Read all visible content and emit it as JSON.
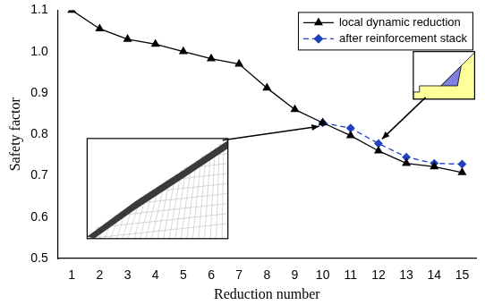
{
  "chart_data": {
    "type": "line",
    "x_label": "Reduction number",
    "y_label": "Safety factor",
    "categories": [
      "1",
      "2",
      "3",
      "4",
      "5",
      "6",
      "7",
      "8",
      "9",
      "10",
      "11",
      "12",
      "13",
      "14",
      "15"
    ],
    "series": [
      {
        "name": "local dynamic reduction",
        "color": "#000000",
        "marker": "triangle",
        "line_style": "solid",
        "values": [
          1.1,
          1.055,
          1.03,
          1.018,
          1.0,
          0.983,
          0.97,
          0.912,
          0.86,
          0.828,
          0.797,
          0.76,
          0.73,
          0.722,
          0.708
        ]
      },
      {
        "name": "after reinforcement stack",
        "color": "#1f3fbf",
        "marker": "diamond",
        "line_style": "dashed",
        "values": [
          null,
          null,
          null,
          null,
          null,
          null,
          null,
          null,
          null,
          0.828,
          0.815,
          0.778,
          0.745,
          0.73,
          0.728
        ]
      }
    ],
    "ylim": [
      0.5,
      1.1
    ],
    "yticks": [
      0.5,
      0.6,
      0.7,
      0.8,
      0.9,
      {
        "value": 1,
        "label": "1.0"
      },
      1.1
    ],
    "grid": false,
    "legend": "upper right"
  }
}
